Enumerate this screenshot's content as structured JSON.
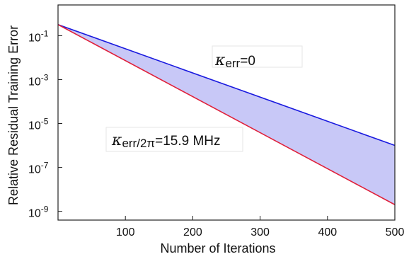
{
  "chart_data": {
    "type": "line",
    "title": "",
    "xlabel": "Number of Iterations",
    "ylabel": "Relative Residual Training Error",
    "x_range": [
      0,
      500
    ],
    "y_scale": "log",
    "y_range_exponent": [
      -9.4,
      0.4
    ],
    "x_ticks": [
      100,
      200,
      300,
      400,
      500
    ],
    "y_ticks": [
      {
        "base": "10",
        "exp": "-1",
        "value": 0.1
      },
      {
        "base": "10",
        "exp": "-3",
        "value": 0.001
      },
      {
        "base": "10",
        "exp": "-5",
        "value": 1e-05
      },
      {
        "base": "10",
        "exp": "-7",
        "value": 1e-07
      },
      {
        "base": "10",
        "exp": "-9",
        "value": 1e-09
      }
    ],
    "grid": false,
    "series": [
      {
        "name": "κ_err=0",
        "color": "#1a1adf",
        "x": [
          0,
          500
        ],
        "y": [
          0.32,
          1e-06
        ]
      },
      {
        "name": "κ_err/2π=15.9 MHz",
        "color": "#e0203a",
        "x": [
          0,
          500
        ],
        "y": [
          0.32,
          2e-09
        ]
      }
    ],
    "fill_between": {
      "color": "#c8c8f7"
    },
    "annotations": [
      {
        "symbol": "κ",
        "subscript": "err",
        "text": "=0"
      },
      {
        "symbol": "κ",
        "subscript": "err/2π",
        "text": "=15.9 MHz"
      }
    ]
  }
}
